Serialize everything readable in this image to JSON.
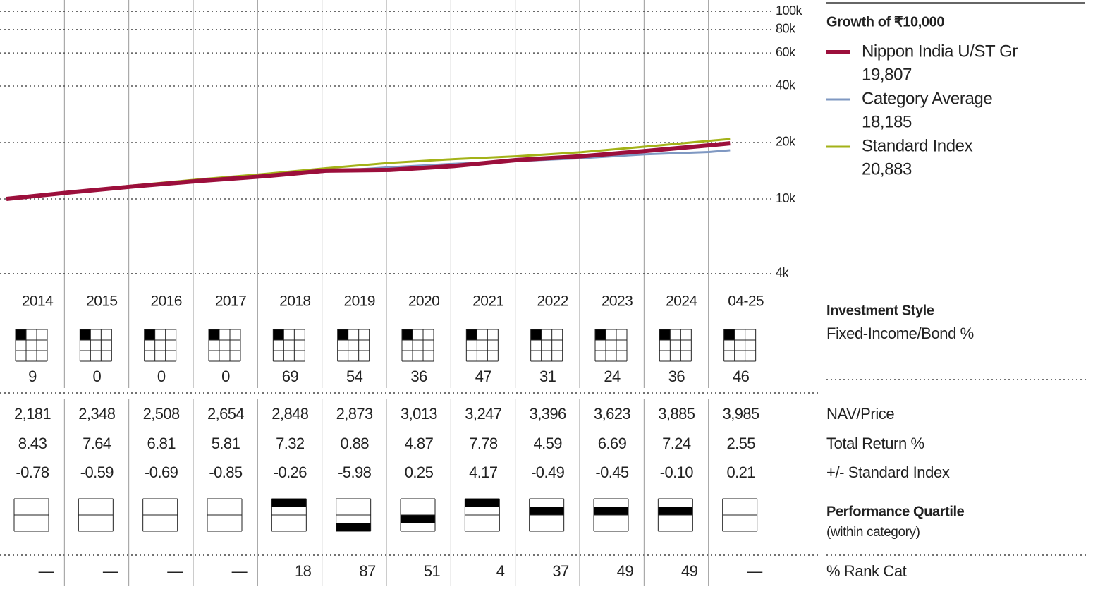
{
  "chart_data": {
    "type": "line",
    "title": "Growth of ₹10,000",
    "log_scale": true,
    "grid": true,
    "x": [
      2014,
      2015,
      2016,
      2017,
      2018,
      2019,
      2020,
      2021,
      2022,
      2023,
      2024,
      2025,
      2025.33
    ],
    "xlim": [
      2013.9,
      2026
    ],
    "ylim": [
      3600,
      115000
    ],
    "yticks": [
      {
        "value": 100000,
        "label": "100k"
      },
      {
        "value": 80000,
        "label": "80k"
      },
      {
        "value": 60000,
        "label": "60k"
      },
      {
        "value": 40000,
        "label": "40k"
      },
      {
        "value": 20000,
        "label": "20k"
      },
      {
        "value": 10000,
        "label": "10k"
      },
      {
        "value": 4000,
        "label": "4k"
      }
    ],
    "series": [
      {
        "name": "Standard Index",
        "color": "#a3b218",
        "width": 3,
        "legend_value": "20,883",
        "values": [
          10000,
          10921,
          11820,
          12706,
          13552,
          14579,
          15579,
          16299,
          16887,
          17745,
          19012,
          20408,
          20883
        ]
      },
      {
        "name": "Category Average",
        "color": "#7f98c2",
        "width": 3,
        "legend_value": "18,185",
        "values": [
          10000,
          10830,
          11620,
          12380,
          13100,
          13980,
          14750,
          15390,
          15920,
          16500,
          17300,
          17800,
          18185
        ]
      },
      {
        "name": "Nippon India U/ST Gr",
        "color": "#9c0f3c",
        "width": 6,
        "legend_value": "19,807",
        "values": [
          10000,
          10843,
          11671,
          12466,
          13190,
          14155,
          14280,
          14975,
          16140,
          16881,
          18010,
          19314,
          19807
        ]
      }
    ],
    "legend_order": [
      2,
      1,
      0
    ]
  },
  "table": {
    "columns": [
      "2014",
      "2015",
      "2016",
      "2017",
      "2018",
      "2019",
      "2020",
      "2021",
      "2022",
      "2023",
      "2024",
      "04-25"
    ],
    "style_box": {
      "title": "Investment Style",
      "subtitle": "Fixed-Income/Bond %",
      "values": [
        "9",
        "0",
        "0",
        "0",
        "69",
        "54",
        "36",
        "47",
        "31",
        "24",
        "36",
        "46"
      ]
    },
    "rows": [
      {
        "label": "NAV/Price",
        "values": [
          "2,181",
          "2,348",
          "2,508",
          "2,654",
          "2,848",
          "2,873",
          "3,013",
          "3,247",
          "3,396",
          "3,623",
          "3,885",
          "3,985"
        ]
      },
      {
        "label": "Total Return %",
        "values": [
          "8.43",
          "7.64",
          "6.81",
          "5.81",
          "7.32",
          "0.88",
          "4.87",
          "7.78",
          "4.59",
          "6.69",
          "7.24",
          "2.55"
        ]
      },
      {
        "label": "+/- Standard Index",
        "values": [
          "-0.78",
          "-0.59",
          "-0.69",
          "-0.85",
          "-0.26",
          "-5.98",
          "0.25",
          "4.17",
          "-0.49",
          "-0.45",
          "-0.10",
          "0.21"
        ]
      }
    ],
    "quartile": {
      "title": "Performance Quartile",
      "subtitle": "(within category)",
      "values": [
        null,
        null,
        null,
        null,
        1,
        4,
        3,
        1,
        2,
        2,
        2,
        null
      ]
    },
    "rank": {
      "label": "% Rank Cat",
      "values": [
        "—",
        "—",
        "—",
        "—",
        "18",
        "87",
        "51",
        "4",
        "37",
        "49",
        "49",
        "—"
      ]
    }
  }
}
